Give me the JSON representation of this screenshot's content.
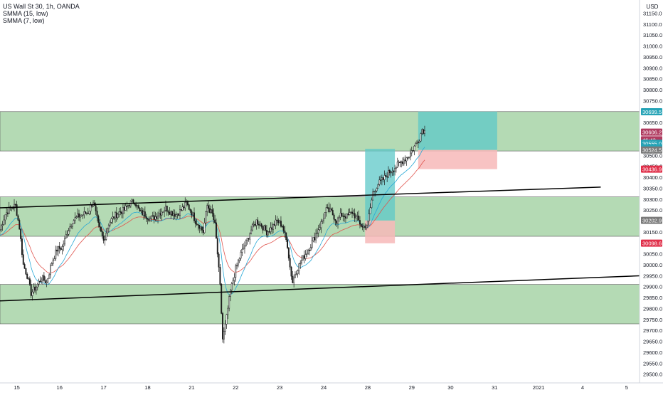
{
  "header": {
    "symbol_line": "US Wall St 30, 1h, OANDA",
    "indicators": [
      "SMMA (15, low)",
      "SMMA (7, low)"
    ],
    "currency": "USD"
  },
  "colors": {
    "zone_fill": "#a7d3a7",
    "zone_border": "#555555",
    "trendline": "#000000",
    "candle": "#1a1a1a",
    "smma15": "#26a8d6",
    "smma7": "#e0554e",
    "long_target": "#5ec8c8",
    "long_stop": "#f7b8b8",
    "label_target": "#26a3b6",
    "label_stop": "#e0304a",
    "label_neutral": "#7a7a7a",
    "label_price": "#b03b60"
  },
  "chart_data": {
    "type": "candlestick",
    "title": "US Wall St 30, 1h, OANDA",
    "ylim": [
      29460,
      31210
    ],
    "y_ticks": [
      31150.0,
      31100.0,
      31050.0,
      31000.0,
      30950.0,
      30900.0,
      30850.0,
      30800.0,
      30750.0,
      30650.0,
      30600.0,
      30550.0,
      30500.0,
      30450.0,
      30400.0,
      30350.0,
      30300.0,
      30250.0,
      30200.0,
      30150.0,
      30100.0,
      30050.0,
      30000.0,
      29950.0,
      29900.0,
      29850.0,
      29800.0,
      29750.0,
      29700.0,
      29650.0,
      29600.0,
      29550.0,
      29500.0
    ],
    "x_ticks": [
      "15",
      "16",
      "17",
      "18",
      "21",
      "22",
      "23",
      "24",
      "28",
      "29",
      "30",
      "31",
      "2021",
      "4",
      "5"
    ],
    "x_tick_index": [
      13,
      46,
      80,
      114,
      148,
      182,
      216,
      250,
      284,
      318,
      348,
      382,
      416,
      450,
      484
    ],
    "zones": [
      {
        "y1": 30520,
        "y2": 30700
      },
      {
        "y1": 30130,
        "y2": 30310
      },
      {
        "y1": 29730,
        "y2": 29910
      }
    ],
    "trendlines": [
      {
        "x1": 0,
        "y1": 30260,
        "x2": 464,
        "y2": 30355
      },
      {
        "x1": 0,
        "y1": 29835,
        "x2": 496,
        "y2": 29950
      }
    ],
    "positions": [
      {
        "x1": 282,
        "x2": 305,
        "entry": 30202,
        "target": 30530,
        "stop": 30098
      },
      {
        "x1": 323,
        "x2": 384,
        "entry": 30524.5,
        "target": 30700,
        "stop": 30436.9
      }
    ],
    "price_labels": [
      {
        "value": 30699.5,
        "text": "30699.5",
        "color": "#26a3b6"
      },
      {
        "value": 30606.2,
        "text": "30606.2",
        "color": "#b03b60"
      },
      {
        "value": 30571.1,
        "text": "46:43",
        "color": "#b03b60"
      },
      {
        "value": 30555.0,
        "text": "30555.0",
        "color": "#26a3b6"
      },
      {
        "value": 30534.1,
        "text": "30534.1",
        "color": "#26a3b6"
      },
      {
        "value": 30524.5,
        "text": "30524.5",
        "color": "#7a7a7a"
      },
      {
        "value": 30436.9,
        "text": "30436.9",
        "color": "#e0304a"
      },
      {
        "value": 30202.9,
        "text": "30202.9",
        "color": "#7a7a7a"
      },
      {
        "value": 30098.6,
        "text": "30098.6",
        "color": "#e0304a"
      }
    ],
    "path_points": [
      [
        0,
        30160
      ],
      [
        4,
        30230
      ],
      [
        8,
        30260
      ],
      [
        12,
        30270
      ],
      [
        15,
        30170
      ],
      [
        18,
        30000
      ],
      [
        21,
        29950
      ],
      [
        24,
        29870
      ],
      [
        28,
        29900
      ],
      [
        32,
        29940
      ],
      [
        36,
        29920
      ],
      [
        40,
        30010
      ],
      [
        44,
        30070
      ],
      [
        48,
        30080
      ],
      [
        52,
        30150
      ],
      [
        56,
        30200
      ],
      [
        60,
        30220
      ],
      [
        64,
        30230
      ],
      [
        68,
        30240
      ],
      [
        72,
        30290
      ],
      [
        76,
        30180
      ],
      [
        80,
        30110
      ],
      [
        84,
        30190
      ],
      [
        88,
        30220
      ],
      [
        92,
        30240
      ],
      [
        96,
        30250
      ],
      [
        100,
        30280
      ],
      [
        104,
        30290
      ],
      [
        108,
        30240
      ],
      [
        112,
        30230
      ],
      [
        116,
        30210
      ],
      [
        120,
        30220
      ],
      [
        124,
        30240
      ],
      [
        128,
        30260
      ],
      [
        132,
        30240
      ],
      [
        136,
        30230
      ],
      [
        140,
        30250
      ],
      [
        144,
        30280
      ],
      [
        148,
        30240
      ],
      [
        151,
        30200
      ],
      [
        154,
        30180
      ],
      [
        157,
        30150
      ],
      [
        160,
        30270
      ],
      [
        164,
        30230
      ],
      [
        166,
        30180
      ],
      [
        168,
        30050
      ],
      [
        170,
        29900
      ],
      [
        172,
        29660
      ],
      [
        174,
        29720
      ],
      [
        176,
        29800
      ],
      [
        178,
        29880
      ],
      [
        180,
        29930
      ],
      [
        182,
        29980
      ],
      [
        186,
        30050
      ],
      [
        190,
        30100
      ],
      [
        194,
        30160
      ],
      [
        198,
        30200
      ],
      [
        202,
        30180
      ],
      [
        206,
        30150
      ],
      [
        210,
        30170
      ],
      [
        214,
        30200
      ],
      [
        218,
        30180
      ],
      [
        222,
        30090
      ],
      [
        224,
        29990
      ],
      [
        226,
        29920
      ],
      [
        228,
        29960
      ],
      [
        232,
        30010
      ],
      [
        236,
        30050
      ],
      [
        240,
        30090
      ],
      [
        244,
        30140
      ],
      [
        248,
        30190
      ],
      [
        252,
        30250
      ],
      [
        256,
        30240
      ],
      [
        260,
        30200
      ],
      [
        264,
        30230
      ],
      [
        268,
        30220
      ],
      [
        272,
        30240
      ],
      [
        276,
        30210
      ],
      [
        280,
        30170
      ],
      [
        284,
        30190
      ],
      [
        288,
        30330
      ],
      [
        292,
        30370
      ],
      [
        296,
        30390
      ],
      [
        300,
        30420
      ],
      [
        304,
        30440
      ],
      [
        308,
        30460
      ],
      [
        312,
        30480
      ],
      [
        316,
        30500
      ],
      [
        320,
        30540
      ],
      [
        324,
        30580
      ],
      [
        326,
        30620
      ],
      [
        328,
        30610
      ]
    ],
    "series": [
      {
        "name": "SMMA (15, low)"
      },
      {
        "name": "SMMA (7, low)"
      }
    ]
  }
}
